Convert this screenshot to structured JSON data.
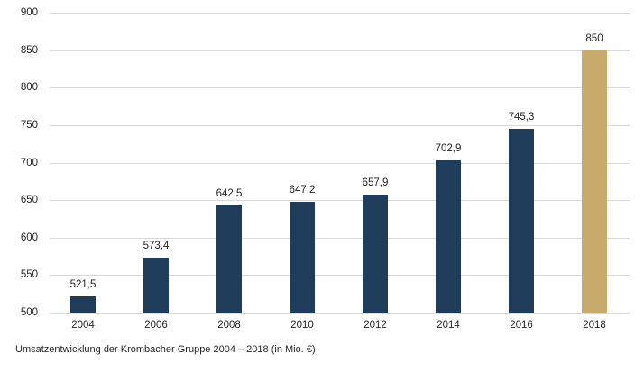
{
  "chart_data": {
    "type": "bar",
    "title": "",
    "categories": [
      "2004",
      "2006",
      "2008",
      "2010",
      "2012",
      "2014",
      "2016",
      "2018"
    ],
    "values": [
      521.5,
      573.4,
      642.5,
      647.2,
      657.9,
      702.9,
      745.3,
      850
    ],
    "value_labels": [
      "521,5",
      "573,4",
      "642,5",
      "647,2",
      "657,9",
      "702,9",
      "745,3",
      "850"
    ],
    "xlabel": "",
    "ylabel": "",
    "ylim": [
      500,
      900
    ],
    "yticks": [
      500,
      550,
      600,
      650,
      700,
      750,
      800,
      850,
      900
    ],
    "ytick_labels": [
      "500",
      "550",
      "600",
      "650",
      "700",
      "750",
      "800",
      "850",
      "900"
    ],
    "grid": true,
    "legend_position": "none",
    "bar_color": "#1f3c5a",
    "highlight_color": "#c8ab6c",
    "highlight_category": "2018",
    "gridline_color": "#d9d9d9",
    "text_color": "#262626",
    "background_color": "#ffffff",
    "caption": "Umsatzentwicklung der Krombacher Gruppe 2004 – 2018 (in Mio. €)"
  }
}
